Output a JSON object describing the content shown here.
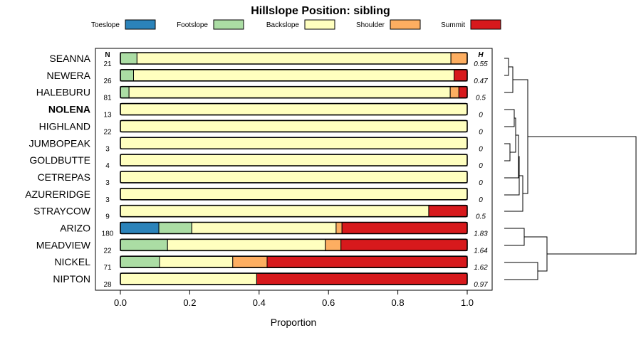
{
  "chart_data": {
    "type": "bar",
    "orientation": "horizontal-stacked",
    "title": "Hillslope Position: sibling",
    "xlabel": "Proportion",
    "xlim": [
      0,
      1
    ],
    "xticks": [
      "0.0",
      "0.2",
      "0.4",
      "0.6",
      "0.8",
      "1.0"
    ],
    "xtick_values": [
      0,
      0.2,
      0.4,
      0.6,
      0.8,
      1.0
    ],
    "n_header": "N",
    "h_header": "H",
    "highlighted": "NOLENA",
    "legend": [
      {
        "name": "Toeslope",
        "color": "#2b83ba"
      },
      {
        "name": "Footslope",
        "color": "#abdda4"
      },
      {
        "name": "Backslope",
        "color": "#ffffbf"
      },
      {
        "name": "Shoulder",
        "color": "#fdae61"
      },
      {
        "name": "Summit",
        "color": "#d7191c"
      }
    ],
    "series_order": [
      "Toeslope",
      "Footslope",
      "Backslope",
      "Shoulder",
      "Summit"
    ],
    "rows": [
      {
        "label": "SEANNA",
        "n": "21",
        "h": "0.55",
        "values": [
          0,
          0.048,
          0.905,
          0.047,
          0
        ]
      },
      {
        "label": "NEWERA",
        "n": "26",
        "h": "0.47",
        "values": [
          0,
          0.038,
          0.924,
          0,
          0.038
        ]
      },
      {
        "label": "HALEBURU",
        "n": "81",
        "h": "0.5",
        "values": [
          0,
          0.025,
          0.926,
          0.025,
          0.024
        ]
      },
      {
        "label": "NOLENA",
        "n": "13",
        "h": "0",
        "values": [
          0,
          0,
          1,
          0,
          0
        ]
      },
      {
        "label": "HIGHLAND",
        "n": "22",
        "h": "0",
        "values": [
          0,
          0,
          1,
          0,
          0
        ]
      },
      {
        "label": "JUMBOPEAK",
        "n": "3",
        "h": "0",
        "values": [
          0,
          0,
          1,
          0,
          0
        ]
      },
      {
        "label": "GOLDBUTTE",
        "n": "4",
        "h": "0",
        "values": [
          0,
          0,
          1,
          0,
          0
        ]
      },
      {
        "label": "CETREPAS",
        "n": "3",
        "h": "0",
        "values": [
          0,
          0,
          1,
          0,
          0
        ]
      },
      {
        "label": "AZURERIDGE",
        "n": "3",
        "h": "0",
        "values": [
          0,
          0,
          1,
          0,
          0
        ]
      },
      {
        "label": "STRAYCOW",
        "n": "9",
        "h": "0.5",
        "values": [
          0,
          0,
          0.889,
          0,
          0.111
        ]
      },
      {
        "label": "ARIZO",
        "n": "180",
        "h": "1.83",
        "values": [
          0.111,
          0.095,
          0.416,
          0.017,
          0.361
        ]
      },
      {
        "label": "MEADVIEW",
        "n": "22",
        "h": "1.64",
        "values": [
          0,
          0.136,
          0.455,
          0.045,
          0.364
        ]
      },
      {
        "label": "NICKEL",
        "n": "71",
        "h": "1.62",
        "values": [
          0,
          0.113,
          0.211,
          0.099,
          0.577
        ]
      },
      {
        "label": "NIPTON",
        "n": "28",
        "h": "0.97",
        "values": [
          0,
          0,
          0.393,
          0,
          0.607
        ]
      }
    ]
  }
}
